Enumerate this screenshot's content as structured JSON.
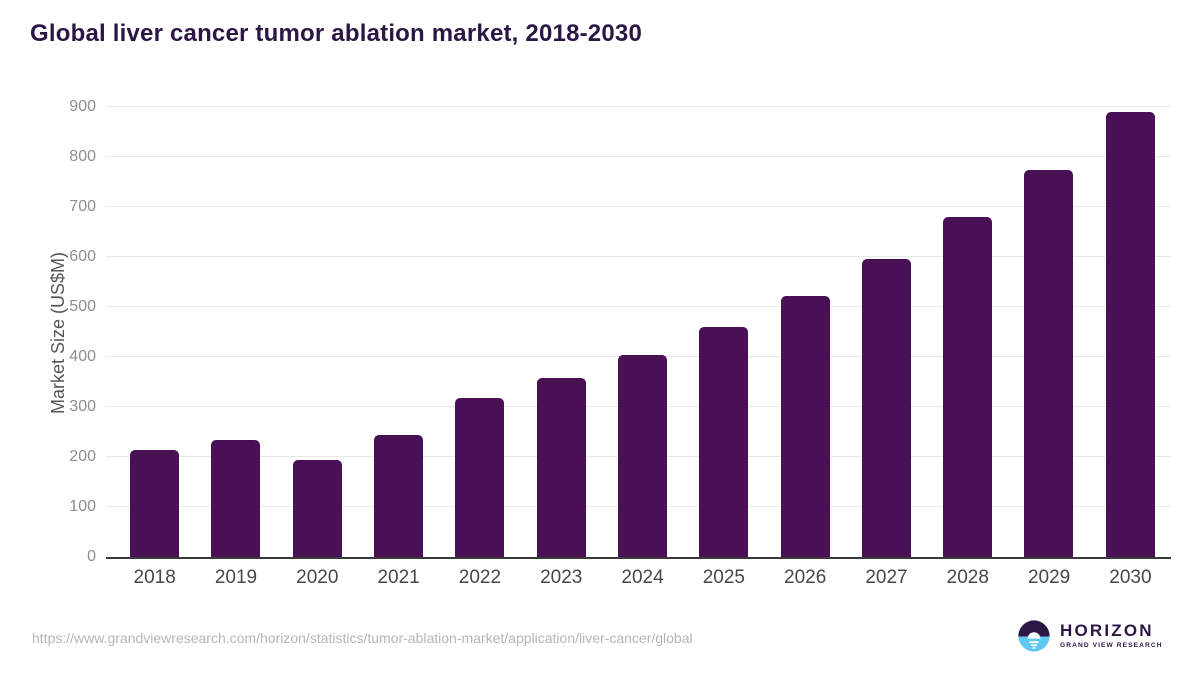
{
  "chart_data": {
    "type": "bar",
    "title": "Global liver cancer tumor ablation market, 2018-2030",
    "categories": [
      "2018",
      "2019",
      "2020",
      "2021",
      "2022",
      "2023",
      "2024",
      "2025",
      "2026",
      "2027",
      "2028",
      "2029",
      "2030"
    ],
    "values": [
      215,
      235,
      194,
      244,
      318,
      358,
      405,
      461,
      523,
      596,
      680,
      775,
      890
    ],
    "xlabel": "",
    "ylabel": "Market Size (US$M)",
    "ylim": [
      0,
      900
    ],
    "yticks": [
      0,
      100,
      200,
      300,
      400,
      500,
      600,
      700,
      800,
      900
    ],
    "grid": true,
    "legend": "none",
    "bar_color": "#4a1056"
  },
  "footer": {
    "source_url": "https://www.grandviewresearch.com/horizon/statistics/tumor-ablation-market/application/liver-cancer/global",
    "logo": {
      "brand": "HORIZON",
      "sub_brand": "GRAND VIEW RESEARCH",
      "icon": "horizon-sun-icon",
      "colors": {
        "purple": "#2c1645",
        "blue": "#5fc8f2"
      }
    }
  },
  "colors": {
    "title": "#2c1645",
    "bar": "#4a1056",
    "gridline": "#e8e8e8",
    "axis_line": "#3a3a3a",
    "y_tick_label": "#8e8e8e",
    "x_tick_label": "#474747",
    "url_text": "#b5b5b5",
    "background": "#ffffff"
  }
}
